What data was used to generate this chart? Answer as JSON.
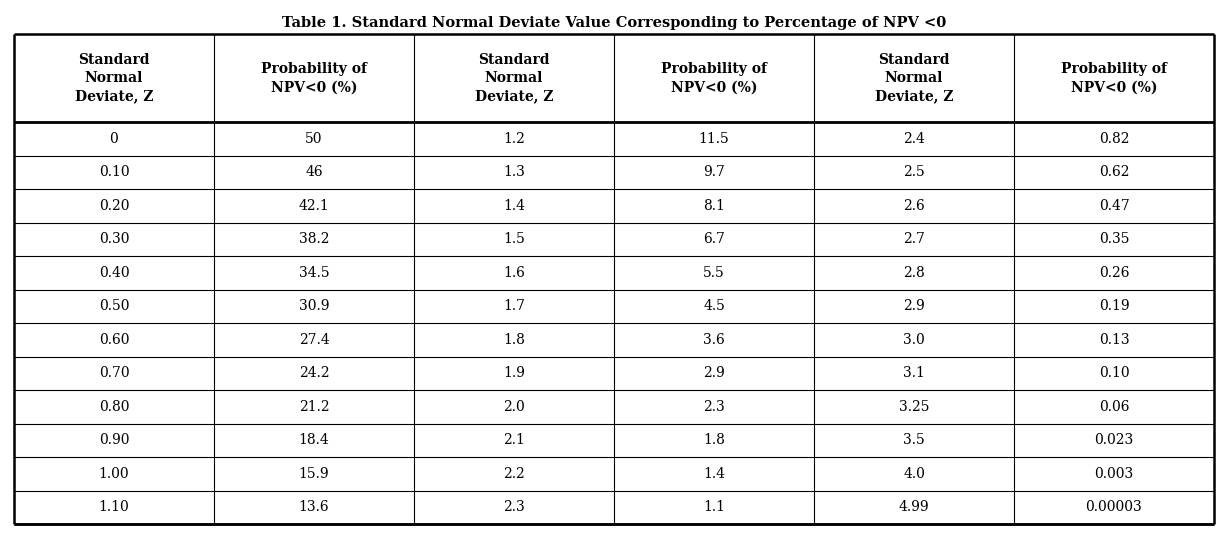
{
  "title": "Table 1. Standard Normal Deviate Value Corresponding to Percentage of NPV <0",
  "col_headers_line1": [
    "Standard",
    "Probability of",
    "Standard",
    "Probability of",
    "Standard",
    "Probability of"
  ],
  "col_headers_line2": [
    "Normal",
    "NPV<0 (%)",
    "Normal",
    "NPV<0 (%)",
    "Normal",
    "NPV<0 (%)"
  ],
  "col_headers_line3": [
    "Deviate, Z",
    "",
    "Deviate, Z",
    "",
    "Deviate, Z",
    ""
  ],
  "rows": [
    [
      "0",
      "50",
      "1.2",
      "11.5",
      "2.4",
      "0.82"
    ],
    [
      "0.10",
      "46",
      "1.3",
      "9.7",
      "2.5",
      "0.62"
    ],
    [
      "0.20",
      "42.1",
      "1.4",
      "8.1",
      "2.6",
      "0.47"
    ],
    [
      "0.30",
      "38.2",
      "1.5",
      "6.7",
      "2.7",
      "0.35"
    ],
    [
      "0.40",
      "34.5",
      "1.6",
      "5.5",
      "2.8",
      "0.26"
    ],
    [
      "0.50",
      "30.9",
      "1.7",
      "4.5",
      "2.9",
      "0.19"
    ],
    [
      "0.60",
      "27.4",
      "1.8",
      "3.6",
      "3.0",
      "0.13"
    ],
    [
      "0.70",
      "24.2",
      "1.9",
      "2.9",
      "3.1",
      "0.10"
    ],
    [
      "0.80",
      "21.2",
      "2.0",
      "2.3",
      "3.25",
      "0.06"
    ],
    [
      "0.90",
      "18.4",
      "2.1",
      "1.8",
      "3.5",
      "0.023"
    ],
    [
      "1.00",
      "15.9",
      "2.2",
      "1.4",
      "4.0",
      "0.003"
    ],
    [
      "1.10",
      "13.6",
      "2.3",
      "1.1",
      "4.99",
      "0.00003"
    ]
  ],
  "col_widths_rel": [
    1.0,
    1.0,
    1.0,
    1.0,
    1.0,
    1.0
  ],
  "background_color": "#ffffff",
  "title_fontsize": 10.5,
  "header_fontsize": 10,
  "cell_fontsize": 10,
  "outer_linewidth": 1.8,
  "inner_linewidth": 0.8,
  "thick_linewidth": 2.0
}
